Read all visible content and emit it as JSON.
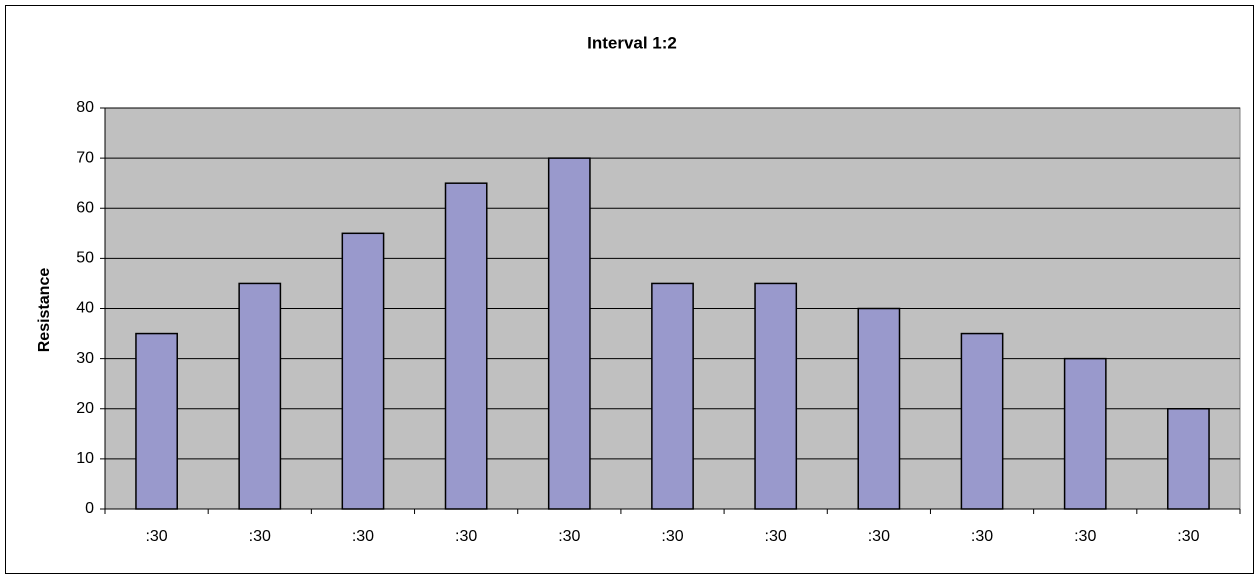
{
  "chart_data": {
    "type": "bar",
    "title": "Interval 1:2",
    "y_label": "Resistance",
    "categories": [
      ":30",
      ":30",
      ":30",
      ":30",
      ":30",
      ":30",
      ":30",
      ":30",
      ":30",
      ":30",
      ":30"
    ],
    "values": [
      35,
      45,
      55,
      65,
      70,
      45,
      45,
      40,
      35,
      30,
      20
    ],
    "color": "#9999cc",
    "ylim": [
      0,
      80
    ],
    "yticks": [
      0,
      10,
      20,
      30,
      40,
      50,
      60,
      70,
      80
    ],
    "grid": true
  }
}
